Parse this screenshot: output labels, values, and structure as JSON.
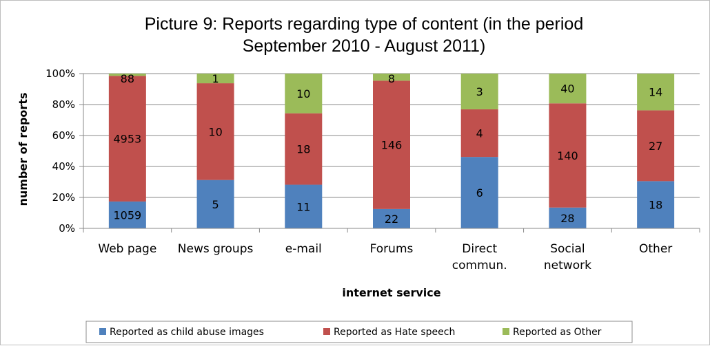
{
  "chart_data": {
    "type": "bar",
    "stacked": "percent",
    "title_lines": [
      "Picture 9: Reports regarding type of content (in the period",
      "September 2010 - August 2011)"
    ],
    "xlabel": "internet service",
    "ylabel": "number of reports",
    "ylim": [
      0,
      100
    ],
    "yticks": [
      "0%",
      "20%",
      "40%",
      "60%",
      "80%",
      "100%"
    ],
    "categories": [
      [
        "Web page"
      ],
      [
        "News groups"
      ],
      [
        "e-mail"
      ],
      [
        "Forums"
      ],
      [
        "Direct",
        "commun."
      ],
      [
        "Social",
        "network"
      ],
      [
        "Other"
      ]
    ],
    "series": [
      {
        "name": "Reported as child abuse images",
        "color": "#4f81bd",
        "values": [
          1059,
          5,
          11,
          22,
          6,
          28,
          18
        ]
      },
      {
        "name": "Reported as Hate speech",
        "color": "#c0504d",
        "values": [
          4953,
          10,
          18,
          146,
          4,
          140,
          27
        ]
      },
      {
        "name": "Reported as Other",
        "color": "#9bbb59",
        "values": [
          88,
          1,
          10,
          8,
          3,
          40,
          14
        ]
      }
    ],
    "grid": true,
    "legend_position": "bottom"
  }
}
